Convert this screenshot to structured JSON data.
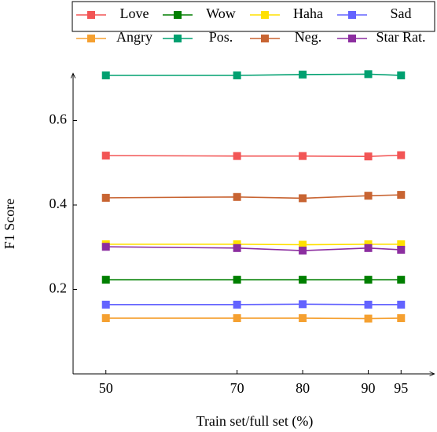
{
  "chart_data": {
    "type": "line",
    "x_label": "Train set/full set (%)",
    "y_label": "F1 Score",
    "x": [
      50,
      70,
      80,
      90,
      95
    ],
    "xlim": [
      45,
      100
    ],
    "xticks": [
      50,
      70,
      80,
      90,
      95
    ],
    "ylim": [
      0,
      0.72
    ],
    "yticks": [
      0.2,
      0.4,
      0.6
    ],
    "legend": "top",
    "series": [
      {
        "name": "Love",
        "color": "#f25555",
        "values": [
          0.517,
          0.516,
          0.516,
          0.515,
          0.518
        ]
      },
      {
        "name": "Wow",
        "color": "#007f00",
        "values": [
          0.223,
          0.223,
          0.223,
          0.223,
          0.223
        ]
      },
      {
        "name": "Haha",
        "color": "#ffe000",
        "values": [
          0.307,
          0.307,
          0.306,
          0.307,
          0.307
        ]
      },
      {
        "name": "Sad",
        "color": "#6363ff",
        "values": [
          0.164,
          0.164,
          0.165,
          0.164,
          0.164
        ]
      },
      {
        "name": "Angry",
        "color": "#f5a030",
        "values": [
          0.132,
          0.132,
          0.132,
          0.131,
          0.132
        ]
      },
      {
        "name": "Pos.",
        "color": "#00a070",
        "values": [
          0.707,
          0.707,
          0.709,
          0.71,
          0.707
        ]
      },
      {
        "name": "Neg.",
        "color": "#c86432",
        "values": [
          0.417,
          0.419,
          0.416,
          0.422,
          0.424
        ]
      },
      {
        "name": "Star Rat.",
        "color": "#8c2ea0",
        "values": [
          0.301,
          0.298,
          0.292,
          0.298,
          0.294
        ]
      }
    ]
  }
}
